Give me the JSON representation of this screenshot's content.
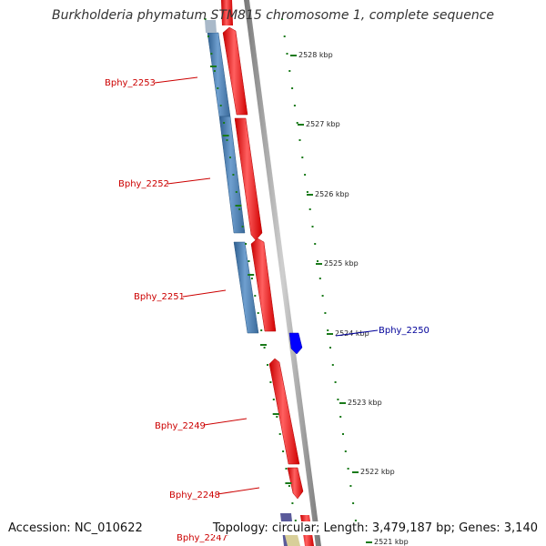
{
  "title": "Burkholderia phymatum STM815 chromosome 1, complete sequence",
  "footer": {
    "accession": "Accession: NC_010622",
    "summary": "Topology: circular; Length: 3,479,187 bp; Genes: 3,140"
  },
  "colors": {
    "forward_gene": "#ff0000",
    "reverse_gene": "#4682b4",
    "highlight_gene": "#0000ff",
    "other_gene": "#5a5a9a",
    "pale_gene": "#d8cf99",
    "backbone": "#8a8a8a",
    "tick": "#1a7a1a",
    "gene_label": "#cc0000",
    "highlight_label": "#000099"
  },
  "ruler_labels": [
    "2528 kbp",
    "2527 kbp",
    "2526 kbp",
    "2525 kbp",
    "2524 kbp",
    "2523 kbp",
    "2522 kbp",
    "2521 kbp"
  ],
  "gene_labels": [
    {
      "name": "Bphy_2253",
      "highlight": false
    },
    {
      "name": "Bphy_2252",
      "highlight": false
    },
    {
      "name": "Bphy_2251",
      "highlight": false
    },
    {
      "name": "Bphy_2250",
      "highlight": true
    },
    {
      "name": "Bphy_2249",
      "highlight": false
    },
    {
      "name": "Bphy_2248",
      "highlight": false
    },
    {
      "name": "Bphy_2247",
      "highlight": false
    }
  ]
}
